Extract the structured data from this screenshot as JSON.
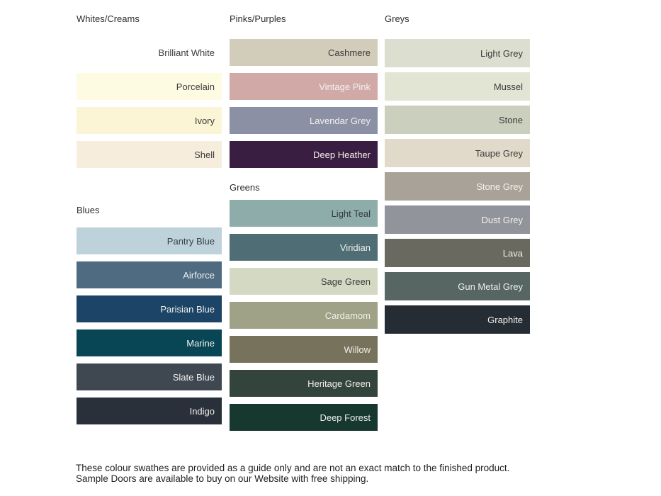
{
  "page": {
    "background": "#ffffff"
  },
  "palette": {
    "columns": [
      {
        "sections": [
          {
            "heading": "Whites/Creams",
            "swatches": [
              {
                "label": "Brilliant White",
                "color": "#ffffff",
                "text_color": "#3b3b3b"
              },
              {
                "label": "Porcelain",
                "color": "#fefbe3",
                "text_color": "#3b3b3b"
              },
              {
                "label": "Ivory",
                "color": "#fbf5d6",
                "text_color": "#3b3b3b"
              },
              {
                "label": "Shell",
                "color": "#f7eddd",
                "text_color": "#3b3b3b"
              }
            ]
          },
          {
            "heading": "Blues",
            "swatches": [
              {
                "label": "Pantry Blue",
                "color": "#bdd2da",
                "text_color": "#37404a"
              },
              {
                "label": "Airforce",
                "color": "#4e6b82",
                "text_color": "#f1f0ec"
              },
              {
                "label": "Parisian Blue",
                "color": "#1c4466",
                "text_color": "#f1f0ec"
              },
              {
                "label": "Marine",
                "color": "#084656",
                "text_color": "#f1f0ec"
              },
              {
                "label": "Slate Blue",
                "color": "#3f4751",
                "text_color": "#f1f0ec"
              },
              {
                "label": "Indigo",
                "color": "#293039",
                "text_color": "#f1f0ec"
              }
            ]
          }
        ]
      },
      {
        "sections": [
          {
            "heading": "Pinks/Purples",
            "swatches": [
              {
                "label": "Cashmere",
                "color": "#d2ccbb",
                "text_color": "#3b3b3b"
              },
              {
                "label": "Vintage Pink",
                "color": "#d1a9a7",
                "text_color": "#f5f0ee"
              },
              {
                "label": "Lavendar Grey",
                "color": "#8b90a4",
                "text_color": "#f1f0ec"
              },
              {
                "label": "Deep Heather",
                "color": "#3a1e41",
                "text_color": "#f1f0ec"
              }
            ]
          },
          {
            "heading": "Greens",
            "swatches": [
              {
                "label": "Light Teal",
                "color": "#8eaca9",
                "text_color": "#333a3a"
              },
              {
                "label": "Viridian",
                "color": "#4e6d74",
                "text_color": "#f1f0ec"
              },
              {
                "label": "Sage Green",
                "color": "#d4d9c3",
                "text_color": "#3b3b3b"
              },
              {
                "label": "Cardamom",
                "color": "#9fa287",
                "text_color": "#f0efe6"
              },
              {
                "label": "Willow",
                "color": "#77725c",
                "text_color": "#f0efe6"
              },
              {
                "label": "Heritage Green",
                "color": "#32443b",
                "text_color": "#f1f0ec"
              },
              {
                "label": "Deep Forest",
                "color": "#16382f",
                "text_color": "#f1f0ec"
              }
            ]
          }
        ]
      },
      {
        "sections": [
          {
            "heading": "Greys",
            "swatches": [
              {
                "label": "Light Grey",
                "color": "#dcded0",
                "text_color": "#3b3b3b"
              },
              {
                "label": "Mussel",
                "color": "#e3e5d4",
                "text_color": "#3b3b3b"
              },
              {
                "label": "Stone",
                "color": "#cbcfbd",
                "text_color": "#3b3b3b"
              },
              {
                "label": "Taupe Grey",
                "color": "#e1daca",
                "text_color": "#3b3b3b"
              },
              {
                "label": "Stone Grey",
                "color": "#a9a299",
                "text_color": "#f4f2ee"
              },
              {
                "label": "Dust Grey",
                "color": "#92949b",
                "text_color": "#f4f2ee"
              },
              {
                "label": "Lava",
                "color": "#6a695f",
                "text_color": "#f1f0ec"
              },
              {
                "label": "Gun Metal Grey",
                "color": "#576662",
                "text_color": "#f1f0ec"
              },
              {
                "label": "Graphite",
                "color": "#262c33",
                "text_color": "#f1f0ec"
              }
            ]
          }
        ]
      }
    ]
  },
  "note": {
    "text": "These colour swathes are provided as a guide only and are not an exact match to the finished product.  Sample Doors are available to buy on our Website with free shipping."
  }
}
